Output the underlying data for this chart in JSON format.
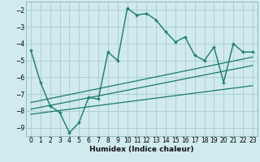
{
  "xlabel": "Humidex (Indice chaleur)",
  "bg_color": "#d0eaed",
  "grid_color": "#a8cdd2",
  "line_color": "#1a7a6e",
  "xlim": [
    -0.5,
    23.5
  ],
  "ylim": [
    -9.5,
    -1.5
  ],
  "yticks": [
    -9,
    -8,
    -7,
    -6,
    -5,
    -4,
    -3,
    -2
  ],
  "xticks": [
    0,
    1,
    2,
    3,
    4,
    5,
    6,
    7,
    8,
    9,
    10,
    11,
    12,
    13,
    14,
    15,
    16,
    17,
    18,
    19,
    20,
    21,
    22,
    23
  ],
  "main_line": {
    "x": [
      0,
      1,
      2,
      3,
      4,
      5,
      6,
      7,
      8,
      9,
      10,
      11,
      12,
      13,
      14,
      15,
      16,
      17,
      18,
      19,
      20,
      21,
      22,
      23
    ],
    "y": [
      -4.4,
      -6.3,
      -7.7,
      -8.1,
      -9.3,
      -8.7,
      -7.2,
      -7.3,
      -4.5,
      -5.0,
      -1.9,
      -2.3,
      -2.2,
      -2.6,
      -3.3,
      -3.9,
      -3.6,
      -4.7,
      -5.0,
      -4.2,
      -6.3,
      -4.0,
      -4.5,
      -4.5
    ]
  },
  "trend_lines": [
    {
      "x": [
        0,
        23
      ],
      "y": [
        -7.5,
        -4.8
      ]
    },
    {
      "x": [
        0,
        23
      ],
      "y": [
        -7.9,
        -5.3
      ]
    },
    {
      "x": [
        0,
        23
      ],
      "y": [
        -8.2,
        -6.5
      ]
    }
  ]
}
